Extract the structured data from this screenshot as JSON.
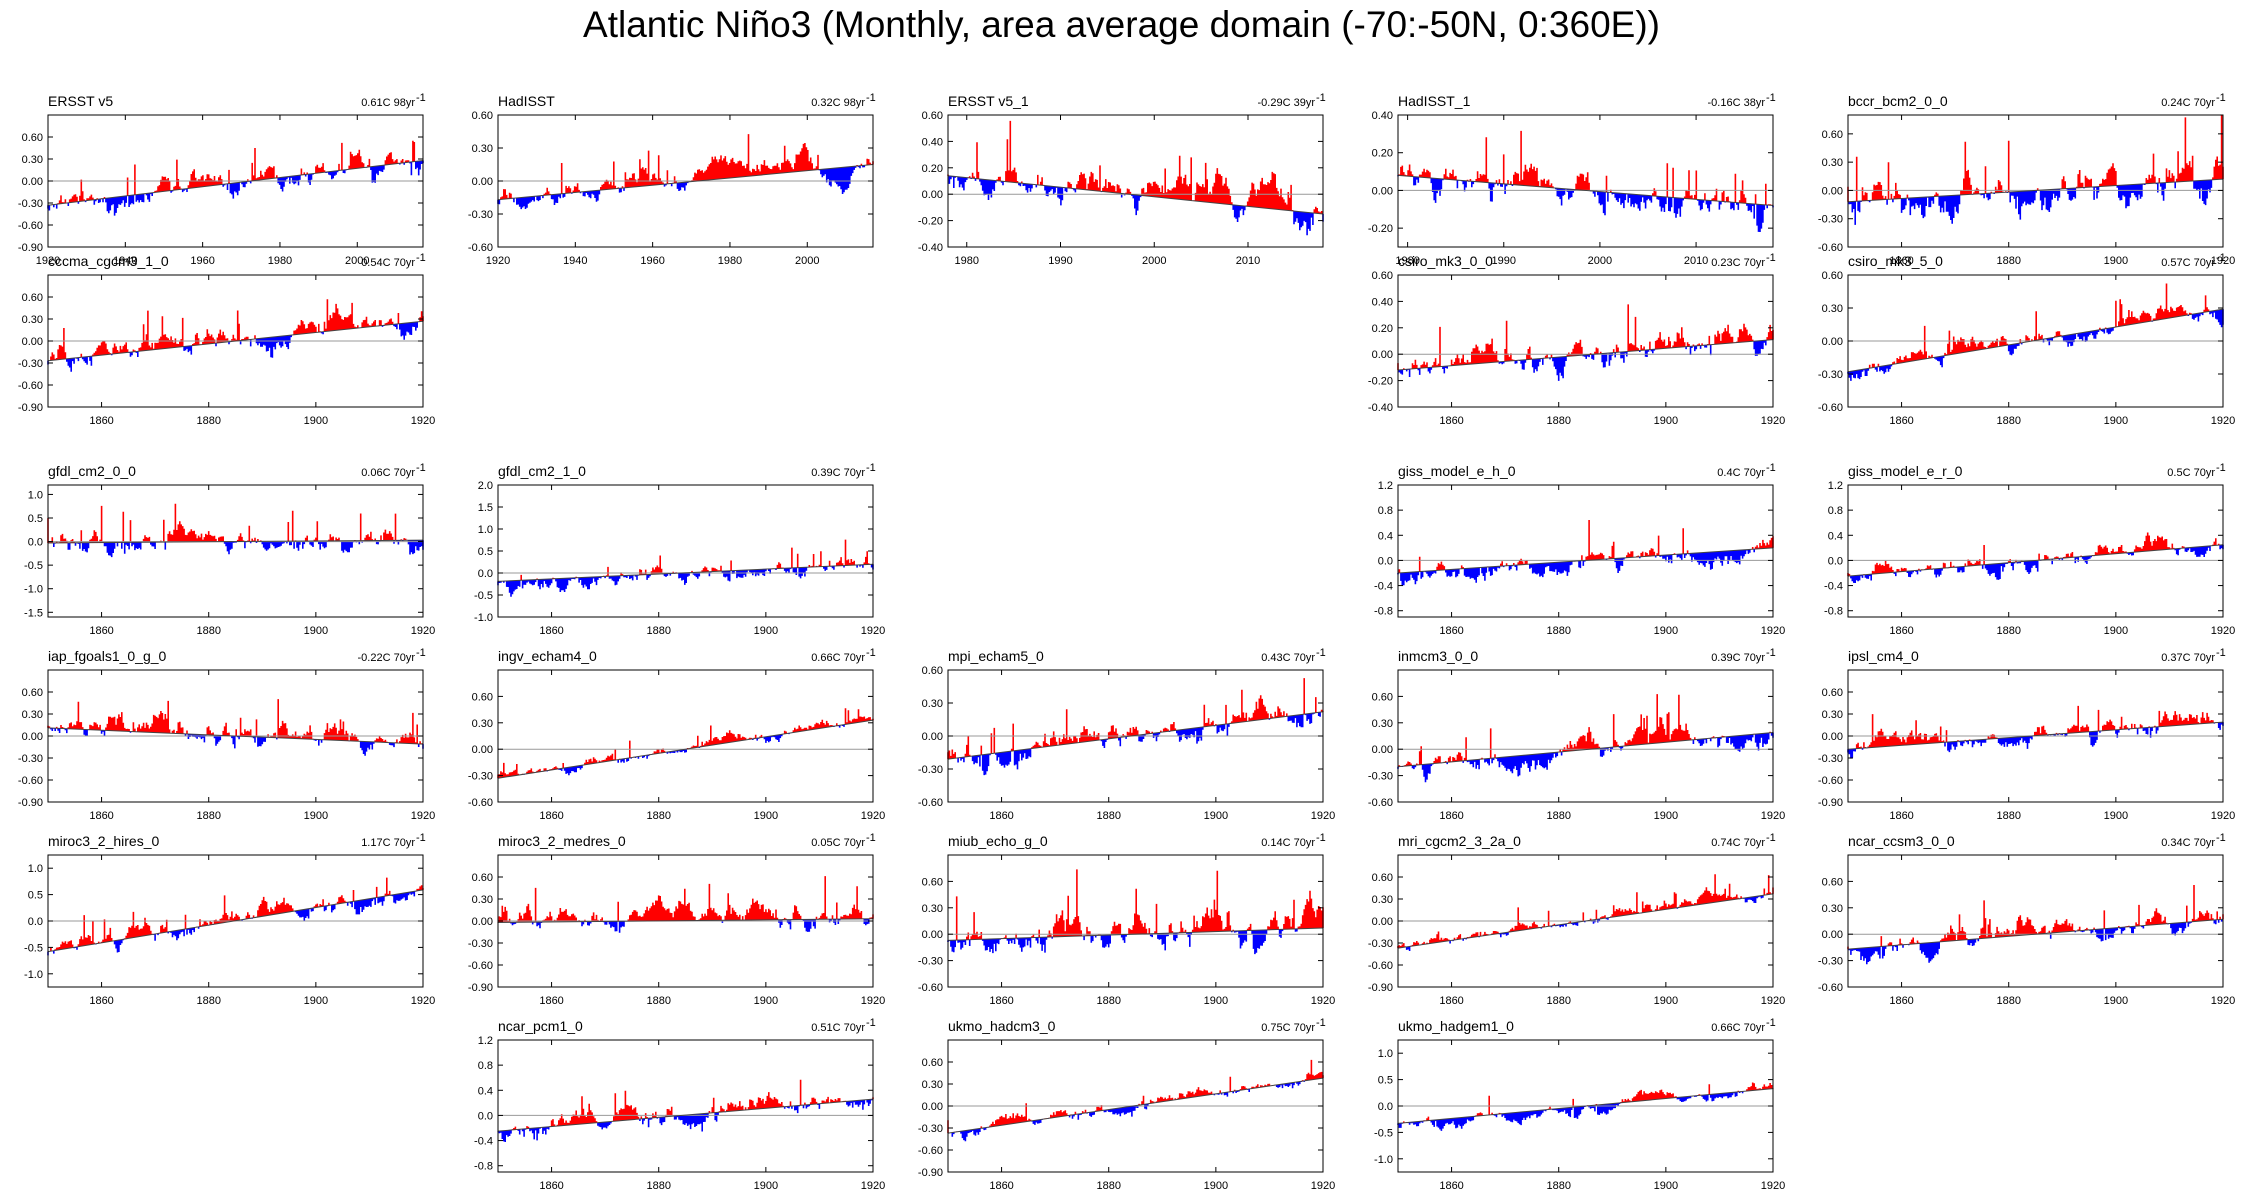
{
  "figure": {
    "title": "Atlantic Niño3 (Monthly, area average domain (-70:-50N, 0:360E))",
    "colors": {
      "positive": "#ff0000",
      "negative": "#0000ff",
      "trend": "#999999",
      "axis": "#000000"
    }
  },
  "chart_data": [
    {
      "type": "bar",
      "row": 0,
      "col": 0,
      "title": "ERSST v5",
      "trend_value": "0.61C 98yr",
      "trend_sup": "-1",
      "xlim": [
        1920,
        2017
      ],
      "xticks": [
        "1920",
        "1940",
        "1960",
        "1980",
        "2000"
      ],
      "ylim": [
        -0.9,
        0.9
      ],
      "yticks": [
        "0.60",
        "0.30",
        "0.00",
        "-0.30",
        "-0.60",
        "-0.90"
      ],
      "trend_line": [
        -0.33,
        0.28
      ],
      "amplitude": 0.32,
      "seed": 11
    },
    {
      "type": "bar",
      "row": 0,
      "col": 1,
      "title": "HadISST",
      "trend_value": "0.32C 98yr",
      "trend_sup": "-1",
      "xlim": [
        1920,
        2017
      ],
      "xticks": [
        "1920",
        "1940",
        "1960",
        "1980",
        "2000"
      ],
      "ylim": [
        -0.6,
        0.6
      ],
      "yticks": [
        "0.60",
        "0.30",
        "0.00",
        "-0.30",
        "-0.60"
      ],
      "trend_line": [
        -0.17,
        0.15
      ],
      "amplitude": 0.18,
      "seed": 12
    },
    {
      "type": "bar",
      "row": 0,
      "col": 2,
      "title": "ERSST v5_1",
      "trend_value": "-0.29C 39yr",
      "trend_sup": "-1",
      "xlim": [
        1978,
        2018
      ],
      "xticks": [
        "1980",
        "1990",
        "2000",
        "2010"
      ],
      "ylim": [
        -0.4,
        0.6
      ],
      "yticks": [
        "0.60",
        "0.40",
        "0.20",
        "0.00",
        "-0.20",
        "-0.40"
      ],
      "trend_line": [
        0.14,
        -0.15
      ],
      "amplitude": 0.22,
      "seed": 13
    },
    {
      "type": "bar",
      "row": 0,
      "col": 3,
      "title": "HadISST_1",
      "trend_value": "-0.16C 38yr",
      "trend_sup": "-1",
      "xlim": [
        1979,
        2018
      ],
      "xticks": [
        "1980",
        "1990",
        "2000",
        "2010"
      ],
      "ylim": [
        -0.3,
        0.4
      ],
      "yticks": [
        "0.40",
        "0.20",
        "0.00",
        "-0.20"
      ],
      "trend_line": [
        0.08,
        -0.08
      ],
      "amplitude": 0.16,
      "seed": 14
    },
    {
      "type": "bar",
      "row": 0,
      "col": 4,
      "title": "bccr_bcm2_0_0",
      "trend_value": "0.24C 70yr",
      "trend_sup": "-1",
      "xlim": [
        1850,
        1920
      ],
      "xticks": [
        "1860",
        "1880",
        "1900",
        "1920"
      ],
      "ylim": [
        -0.6,
        0.8
      ],
      "yticks": [
        "0.60",
        "0.30",
        "0.00",
        "-0.30",
        "-0.60"
      ],
      "trend_line": [
        -0.12,
        0.12
      ],
      "amplitude": 0.35,
      "seed": 15
    },
    {
      "type": "bar",
      "row": 1,
      "col": 0,
      "title": "cccma_cgcm3_1_0",
      "trend_value": "0.54C 70yr",
      "trend_sup": "-1",
      "xlim": [
        1850,
        1920
      ],
      "xticks": [
        "1860",
        "1880",
        "1900",
        "1920"
      ],
      "ylim": [
        -0.9,
        0.9
      ],
      "yticks": [
        "0.60",
        "0.30",
        "0.00",
        "-0.30",
        "-0.60",
        "-0.90"
      ],
      "trend_line": [
        -0.27,
        0.27
      ],
      "amplitude": 0.3,
      "seed": 21
    },
    {
      "type": "bar",
      "row": 1,
      "col": 3,
      "title": "csiro_mk3_0_0",
      "trend_value": "0.23C 70yr",
      "trend_sup": "-1",
      "xlim": [
        1850,
        1920
      ],
      "xticks": [
        "1860",
        "1880",
        "1900",
        "1920"
      ],
      "ylim": [
        -0.4,
        0.6
      ],
      "yticks": [
        "0.60",
        "0.40",
        "0.20",
        "0.00",
        "-0.20",
        "-0.40"
      ],
      "trend_line": [
        -0.12,
        0.11
      ],
      "amplitude": 0.2,
      "seed": 24
    },
    {
      "type": "bar",
      "row": 1,
      "col": 4,
      "title": "csiro_mk3_5_0",
      "trend_value": "0.57C 70yr",
      "trend_sup": "-1",
      "xlim": [
        1850,
        1920
      ],
      "xticks": [
        "1860",
        "1880",
        "1900",
        "1920"
      ],
      "ylim": [
        -0.6,
        0.6
      ],
      "yticks": [
        "0.60",
        "0.30",
        "0.00",
        "-0.30",
        "-0.60"
      ],
      "trend_line": [
        -0.28,
        0.29
      ],
      "amplitude": 0.15,
      "seed": 25
    },
    {
      "type": "bar",
      "row": 2,
      "col": 0,
      "title": "gfdl_cm2_0_0",
      "trend_value": "0.06C 70yr",
      "trend_sup": "-1",
      "xlim": [
        1850,
        1920
      ],
      "xticks": [
        "1860",
        "1880",
        "1900",
        "1920"
      ],
      "ylim": [
        -1.6,
        1.2
      ],
      "yticks": [
        "1.0",
        "0.5",
        "0.0",
        "-0.5",
        "-1.0",
        "-1.5"
      ],
      "trend_line": [
        -0.03,
        0.03
      ],
      "amplitude": 0.45,
      "seed": 31
    },
    {
      "type": "bar",
      "row": 2,
      "col": 1,
      "title": "gfdl_cm2_1_0",
      "trend_value": "0.39C 70yr",
      "trend_sup": "-1",
      "xlim": [
        1850,
        1920
      ],
      "xticks": [
        "1860",
        "1880",
        "1900",
        "1920"
      ],
      "ylim": [
        -1.0,
        2.0
      ],
      "yticks": [
        "2.0",
        "1.5",
        "1.0",
        "0.5",
        "0.0",
        "-0.5",
        "-1.0"
      ],
      "trend_line": [
        -0.19,
        0.2
      ],
      "amplitude": 0.35,
      "seed": 32
    },
    {
      "type": "bar",
      "row": 2,
      "col": 3,
      "title": "giss_model_e_h_0",
      "trend_value": "0.4C 70yr",
      "trend_sup": "-1",
      "xlim": [
        1850,
        1920
      ],
      "xticks": [
        "1860",
        "1880",
        "1900",
        "1920"
      ],
      "ylim": [
        -0.9,
        1.2
      ],
      "yticks": [
        "1.2",
        "0.8",
        "0.4",
        "0.0",
        "-0.4",
        "-0.8"
      ],
      "trend_line": [
        -0.2,
        0.2
      ],
      "amplitude": 0.3,
      "seed": 34
    },
    {
      "type": "bar",
      "row": 2,
      "col": 4,
      "title": "giss_model_e_r_0",
      "trend_value": "0.5C 70yr",
      "trend_sup": "-1",
      "xlim": [
        1850,
        1920
      ],
      "xticks": [
        "1860",
        "1880",
        "1900",
        "1920"
      ],
      "ylim": [
        -0.9,
        1.2
      ],
      "yticks": [
        "1.2",
        "0.8",
        "0.4",
        "0.0",
        "-0.4",
        "-0.8"
      ],
      "trend_line": [
        -0.25,
        0.25
      ],
      "amplitude": 0.28,
      "seed": 35
    },
    {
      "type": "bar",
      "row": 3,
      "col": 0,
      "title": "iap_fgoals1_0_g_0",
      "trend_value": "-0.22C 70yr",
      "trend_sup": "-1",
      "xlim": [
        1850,
        1920
      ],
      "xticks": [
        "1860",
        "1880",
        "1900",
        "1920"
      ],
      "ylim": [
        -0.9,
        0.9
      ],
      "yticks": [
        "0.60",
        "0.30",
        "0.00",
        "-0.30",
        "-0.60",
        "-0.90"
      ],
      "trend_line": [
        0.11,
        -0.11
      ],
      "amplitude": 0.3,
      "seed": 41
    },
    {
      "type": "bar",
      "row": 3,
      "col": 1,
      "title": "ingv_echam4_0",
      "trend_value": "0.66C 70yr",
      "trend_sup": "-1",
      "xlim": [
        1850,
        1920
      ],
      "xticks": [
        "1860",
        "1880",
        "1900",
        "1920"
      ],
      "ylim": [
        -0.6,
        0.9
      ],
      "yticks": [
        "0.60",
        "0.30",
        "0.00",
        "-0.30",
        "-0.60"
      ],
      "trend_line": [
        -0.33,
        0.33
      ],
      "amplitude": 0.12,
      "seed": 42
    },
    {
      "type": "bar",
      "row": 3,
      "col": 2,
      "title": "mpi_echam5_0",
      "trend_value": "0.43C 70yr",
      "trend_sup": "-1",
      "xlim": [
        1850,
        1920
      ],
      "xticks": [
        "1860",
        "1880",
        "1900",
        "1920"
      ],
      "ylim": [
        -0.6,
        0.6
      ],
      "yticks": [
        "0.60",
        "0.30",
        "0.00",
        "-0.30",
        "-0.60"
      ],
      "trend_line": [
        -0.21,
        0.22
      ],
      "amplitude": 0.22,
      "seed": 43
    },
    {
      "type": "bar",
      "row": 3,
      "col": 3,
      "title": "inmcm3_0_0",
      "trend_value": "0.39C 70yr",
      "trend_sup": "-1",
      "xlim": [
        1850,
        1920
      ],
      "xticks": [
        "1860",
        "1880",
        "1900",
        "1920"
      ],
      "ylim": [
        -0.6,
        0.9
      ],
      "yticks": [
        "0.60",
        "0.30",
        "0.00",
        "-0.30",
        "-0.60"
      ],
      "trend_line": [
        -0.2,
        0.19
      ],
      "amplitude": 0.25,
      "seed": 44
    },
    {
      "type": "bar",
      "row": 3,
      "col": 4,
      "title": "ipsl_cm4_0",
      "trend_value": "0.37C 70yr",
      "trend_sup": "-1",
      "xlim": [
        1850,
        1920
      ],
      "xticks": [
        "1860",
        "1880",
        "1900",
        "1920"
      ],
      "ylim": [
        -0.9,
        0.9
      ],
      "yticks": [
        "0.60",
        "0.30",
        "0.00",
        "-0.30",
        "-0.60",
        "-0.90"
      ],
      "trend_line": [
        -0.18,
        0.19
      ],
      "amplitude": 0.28,
      "seed": 45
    },
    {
      "type": "bar",
      "row": 4,
      "col": 0,
      "title": "miroc3_2_hires_0",
      "trend_value": "1.17C 70yr",
      "trend_sup": "-1",
      "xlim": [
        1850,
        1920
      ],
      "xticks": [
        "1860",
        "1880",
        "1900",
        "1920"
      ],
      "ylim": [
        -1.25,
        1.25
      ],
      "yticks": [
        "1.0",
        "0.5",
        "0.0",
        "-0.5",
        "-1.0"
      ],
      "trend_line": [
        -0.58,
        0.59
      ],
      "amplitude": 0.3,
      "seed": 51
    },
    {
      "type": "bar",
      "row": 4,
      "col": 1,
      "title": "miroc3_2_medres_0",
      "trend_value": "0.05C 70yr",
      "trend_sup": "-1",
      "xlim": [
        1850,
        1920
      ],
      "xticks": [
        "1860",
        "1880",
        "1900",
        "1920"
      ],
      "ylim": [
        -0.9,
        0.9
      ],
      "yticks": [
        "0.60",
        "0.30",
        "0.00",
        "-0.30",
        "-0.60",
        "-0.90"
      ],
      "trend_line": [
        -0.02,
        0.03
      ],
      "amplitude": 0.28,
      "seed": 52
    },
    {
      "type": "bar",
      "row": 4,
      "col": 2,
      "title": "miub_echo_g_0",
      "trend_value": "0.14C 70yr",
      "trend_sup": "-1",
      "xlim": [
        1850,
        1920
      ],
      "xticks": [
        "1860",
        "1880",
        "1900",
        "1920"
      ],
      "ylim": [
        -0.6,
        0.9
      ],
      "yticks": [
        "0.60",
        "0.30",
        "0.00",
        "-0.30",
        "-0.60"
      ],
      "trend_line": [
        -0.07,
        0.07
      ],
      "amplitude": 0.35,
      "seed": 53
    },
    {
      "type": "bar",
      "row": 4,
      "col": 3,
      "title": "mri_cgcm2_3_2a_0",
      "trend_value": "0.74C 70yr",
      "trend_sup": "-1",
      "xlim": [
        1850,
        1920
      ],
      "xticks": [
        "1860",
        "1880",
        "1900",
        "1920"
      ],
      "ylim": [
        -0.9,
        0.9
      ],
      "yticks": [
        "0.60",
        "0.30",
        "0.00",
        "-0.30",
        "-0.60",
        "-0.90"
      ],
      "trend_line": [
        -0.37,
        0.37
      ],
      "amplitude": 0.15,
      "seed": 54
    },
    {
      "type": "bar",
      "row": 4,
      "col": 4,
      "title": "ncar_ccsm3_0_0",
      "trend_value": "0.34C 70yr",
      "trend_sup": "-1",
      "xlim": [
        1850,
        1920
      ],
      "xticks": [
        "1860",
        "1880",
        "1900",
        "1920"
      ],
      "ylim": [
        -0.6,
        0.9
      ],
      "yticks": [
        "0.60",
        "0.30",
        "0.00",
        "-0.30",
        "-0.60"
      ],
      "trend_line": [
        -0.17,
        0.17
      ],
      "amplitude": 0.22,
      "seed": 55
    },
    {
      "type": "bar",
      "row": 5,
      "col": 1,
      "title": "ncar_pcm1_0",
      "trend_value": "0.51C 70yr",
      "trend_sup": "-1",
      "xlim": [
        1850,
        1920
      ],
      "xticks": [
        "1860",
        "1880",
        "1900",
        "1920"
      ],
      "ylim": [
        -0.9,
        1.2
      ],
      "yticks": [
        "1.2",
        "0.8",
        "0.4",
        "0.0",
        "-0.4",
        "-0.8"
      ],
      "trend_line": [
        -0.25,
        0.26
      ],
      "amplitude": 0.3,
      "seed": 62
    },
    {
      "type": "bar",
      "row": 5,
      "col": 2,
      "title": "ukmo_hadcm3_0",
      "trend_value": "0.75C 70yr",
      "trend_sup": "-1",
      "xlim": [
        1850,
        1920
      ],
      "xticks": [
        "1860",
        "1880",
        "1900",
        "1920"
      ],
      "ylim": [
        -0.9,
        0.9
      ],
      "yticks": [
        "0.60",
        "0.30",
        "0.00",
        "-0.30",
        "-0.60",
        "-0.90"
      ],
      "trend_line": [
        -0.37,
        0.38
      ],
      "amplitude": 0.15,
      "seed": 63
    },
    {
      "type": "bar",
      "row": 5,
      "col": 3,
      "title": "ukmo_hadgem1_0",
      "trend_value": "0.66C 70yr",
      "trend_sup": "-1",
      "xlim": [
        1850,
        1920
      ],
      "xticks": [
        "1860",
        "1880",
        "1900",
        "1920"
      ],
      "ylim": [
        -1.25,
        1.25
      ],
      "yticks": [
        "1.0",
        "0.5",
        "0.0",
        "-0.5",
        "-1.0"
      ],
      "trend_line": [
        -0.33,
        0.33
      ],
      "amplitude": 0.2,
      "seed": 64
    }
  ]
}
